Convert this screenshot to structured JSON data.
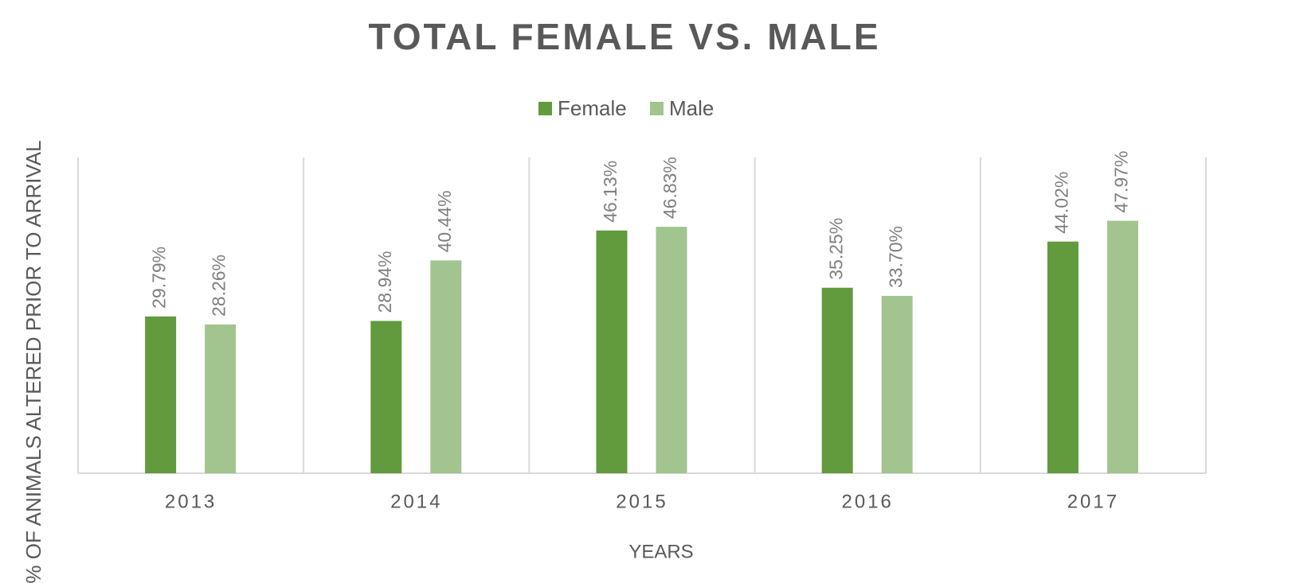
{
  "chart_data": {
    "type": "bar",
    "title": "TOTAL FEMALE VS. MALE",
    "x_label": "YEARS",
    "y_label": "% OF ANIMALS ALTERED PRIOR TO ARRIVAL",
    "categories": [
      "2013",
      "2014",
      "2015",
      "2016",
      "2017"
    ],
    "series": [
      {
        "name": "Female",
        "color": "#629a3e",
        "values": [
          29.79,
          28.94,
          46.13,
          35.25,
          44.02
        ],
        "value_labels": [
          "29.79%",
          "28.94%",
          "46.13%",
          "35.25%",
          "44.02%"
        ]
      },
      {
        "name": "Male",
        "color": "#a2c48f",
        "values": [
          28.26,
          40.44,
          46.83,
          33.7,
          47.97
        ],
        "value_labels": [
          "28.26%",
          "40.44%",
          "46.83%",
          "33.70%",
          "47.97%"
        ]
      }
    ],
    "ylim": [
      0,
      60
    ],
    "legend": "top"
  }
}
